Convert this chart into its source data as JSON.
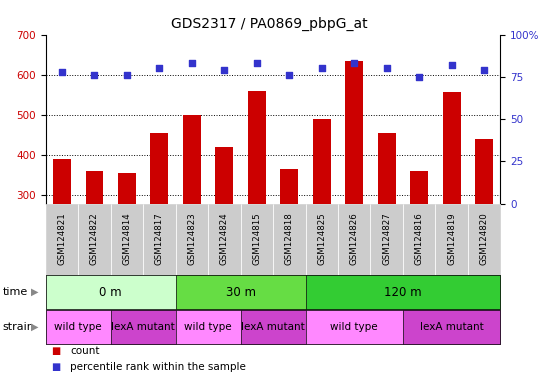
{
  "title": "GDS2317 / PA0869_pbpG_at",
  "samples": [
    "GSM124821",
    "GSM124822",
    "GSM124814",
    "GSM124817",
    "GSM124823",
    "GSM124824",
    "GSM124815",
    "GSM124818",
    "GSM124825",
    "GSM124826",
    "GSM124827",
    "GSM124816",
    "GSM124819",
    "GSM124820"
  ],
  "counts": [
    390,
    360,
    355,
    455,
    500,
    420,
    560,
    365,
    490,
    635,
    455,
    362,
    558,
    440
  ],
  "percentiles": [
    78,
    76,
    76,
    80,
    83,
    79,
    83,
    76,
    80,
    83,
    80,
    75,
    82,
    79
  ],
  "ylim_left": [
    280,
    700
  ],
  "ylim_right": [
    0,
    100
  ],
  "yticks_left": [
    300,
    400,
    500,
    600,
    700
  ],
  "yticks_right": [
    0,
    25,
    50,
    75,
    100
  ],
  "ytick_right_labels": [
    "0",
    "25",
    "50",
    "75",
    "100%"
  ],
  "bar_color": "#cc0000",
  "dot_color": "#3333cc",
  "bar_bottom": 280,
  "time_groups": [
    {
      "label": "0 m",
      "start": 0,
      "end": 4,
      "color": "#ccffcc"
    },
    {
      "label": "30 m",
      "start": 4,
      "end": 8,
      "color": "#66dd44"
    },
    {
      "label": "120 m",
      "start": 8,
      "end": 14,
      "color": "#33cc33"
    }
  ],
  "strain_groups": [
    {
      "label": "wild type",
      "start": 0,
      "end": 2,
      "color": "#ff88ff"
    },
    {
      "label": "lexA mutant",
      "start": 2,
      "end": 4,
      "color": "#cc44cc"
    },
    {
      "label": "wild type",
      "start": 4,
      "end": 6,
      "color": "#ff88ff"
    },
    {
      "label": "lexA mutant",
      "start": 6,
      "end": 8,
      "color": "#cc44cc"
    },
    {
      "label": "wild type",
      "start": 8,
      "end": 11,
      "color": "#ff88ff"
    },
    {
      "label": "lexA mutant",
      "start": 11,
      "end": 14,
      "color": "#cc44cc"
    }
  ],
  "tick_label_bg": "#cccccc",
  "legend_items": [
    {
      "label": "count",
      "color": "#cc0000"
    },
    {
      "label": "percentile rank within the sample",
      "color": "#3333cc"
    }
  ]
}
